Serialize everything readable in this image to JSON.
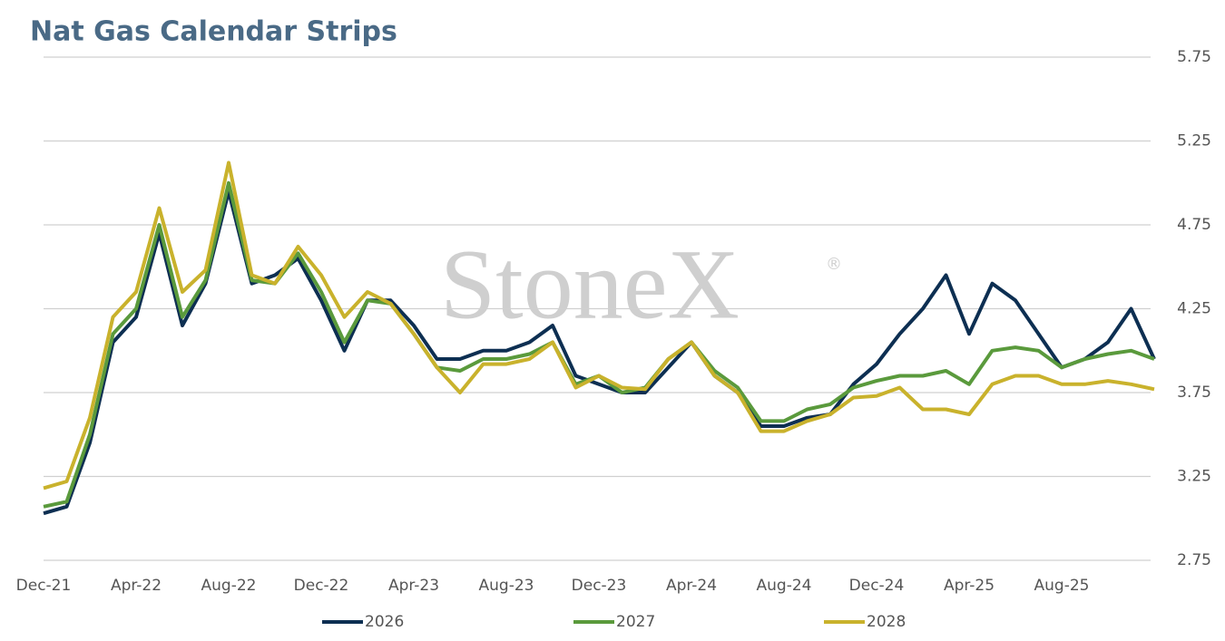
{
  "chart_data": {
    "type": "line",
    "title": "Nat Gas Calendar Strips",
    "watermark": "StoneX",
    "watermark_mark": "®",
    "categories": [
      "Dec-21",
      null,
      null,
      null,
      "Apr-22",
      null,
      null,
      null,
      "Aug-22",
      null,
      null,
      null,
      "Dec-22",
      null,
      null,
      null,
      "Apr-23",
      null,
      null,
      null,
      "Aug-23",
      null,
      null,
      null,
      "Dec-23",
      null,
      null,
      null,
      "Apr-24",
      null,
      null,
      null,
      "Aug-24",
      null,
      null,
      null,
      "Dec-24",
      null,
      null,
      null,
      "Apr-25",
      null,
      null,
      null,
      "Aug-25",
      null,
      null,
      null,
      null
    ],
    "series": [
      {
        "name": "2026",
        "color": "#0d2f52",
        "values": [
          3.03,
          3.07,
          3.45,
          4.05,
          4.2,
          4.7,
          4.15,
          4.4,
          4.95,
          4.4,
          4.45,
          4.55,
          4.3,
          4.0,
          4.3,
          4.3,
          4.15,
          3.95,
          3.95,
          4.0,
          4.0,
          4.05,
          4.15,
          3.85,
          3.8,
          3.75,
          3.75,
          3.9,
          4.05,
          3.85,
          3.75,
          3.55,
          3.55,
          3.6,
          3.62,
          3.8,
          3.92,
          4.1,
          4.25,
          4.45,
          4.1,
          4.4,
          4.3,
          4.1,
          3.9,
          3.95,
          4.05,
          4.25,
          3.95
        ]
      },
      {
        "name": "2027",
        "color": "#5a9a3c",
        "values": [
          3.07,
          3.1,
          3.5,
          4.1,
          4.25,
          4.75,
          4.2,
          4.42,
          5.0,
          4.42,
          4.4,
          4.58,
          4.35,
          4.05,
          4.3,
          4.28,
          4.1,
          3.9,
          3.88,
          3.95,
          3.95,
          3.98,
          4.05,
          3.8,
          3.85,
          3.75,
          3.78,
          3.95,
          4.05,
          3.88,
          3.78,
          3.58,
          3.58,
          3.65,
          3.68,
          3.78,
          3.82,
          3.85,
          3.85,
          3.88,
          3.8,
          4.0,
          4.02,
          4.0,
          3.9,
          3.95,
          3.98,
          4.0,
          3.95
        ]
      },
      {
        "name": "2028",
        "color": "#c9b22c",
        "values": [
          3.18,
          3.22,
          3.6,
          4.2,
          4.35,
          4.85,
          4.35,
          4.48,
          5.12,
          4.45,
          4.4,
          4.62,
          4.45,
          4.2,
          4.35,
          4.28,
          4.1,
          3.9,
          3.75,
          3.92,
          3.92,
          3.95,
          4.05,
          3.78,
          3.85,
          3.78,
          3.77,
          3.95,
          4.05,
          3.85,
          3.75,
          3.52,
          3.52,
          3.58,
          3.62,
          3.72,
          3.73,
          3.78,
          3.65,
          3.65,
          3.62,
          3.8,
          3.85,
          3.85,
          3.8,
          3.8,
          3.82,
          3.8,
          3.77
        ]
      }
    ],
    "ylim": [
      2.75,
      5.75
    ],
    "yticks": [
      2.75,
      3.25,
      3.75,
      4.25,
      4.75,
      5.25,
      5.75
    ],
    "grid": true,
    "legend": "bottom"
  }
}
